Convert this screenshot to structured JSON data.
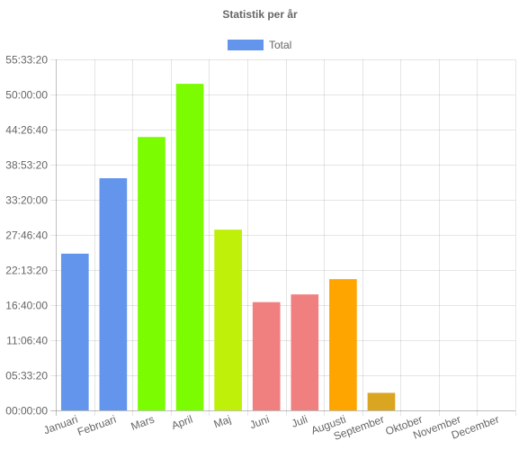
{
  "chart_data": {
    "type": "bar",
    "title": "Statistik per år",
    "xlabel": "",
    "ylabel": "",
    "legend": {
      "position": "top",
      "entries": [
        "Total"
      ]
    },
    "grid": true,
    "categories": [
      "Januari",
      "Februari",
      "Mars",
      "April",
      "Maj",
      "Juni",
      "Juli",
      "Augusti",
      "September",
      "Oktober",
      "November",
      "December"
    ],
    "series": [
      {
        "name": "Total",
        "legend_color": "#6495ED",
        "values": [
          89300,
          132300,
          155800,
          186100,
          103000,
          61700,
          66100,
          74800,
          10000,
          0,
          0,
          0
        ],
        "colors": [
          "#6495ED",
          "#6495ED",
          "#7CFC00",
          "#7CFC00",
          "#BEF00A",
          "#F08080",
          "#F08080",
          "#FFA500",
          "#DAA520",
          "#DAA520",
          "#DAA520",
          "#DAA520"
        ]
      }
    ],
    "ylim": [
      0,
      200000
    ],
    "y_ticks": [
      0,
      20000,
      40000,
      60000,
      80000,
      100000,
      120000,
      140000,
      160000,
      180000,
      200000
    ],
    "y_tick_labels": [
      "00:00:00",
      "05:33:20",
      "11:06:40",
      "16:40:00",
      "22:13:20",
      "27:46:40",
      "33:20:00",
      "38:53:20",
      "44:26:40",
      "50:00:00",
      "55:33:20"
    ]
  }
}
